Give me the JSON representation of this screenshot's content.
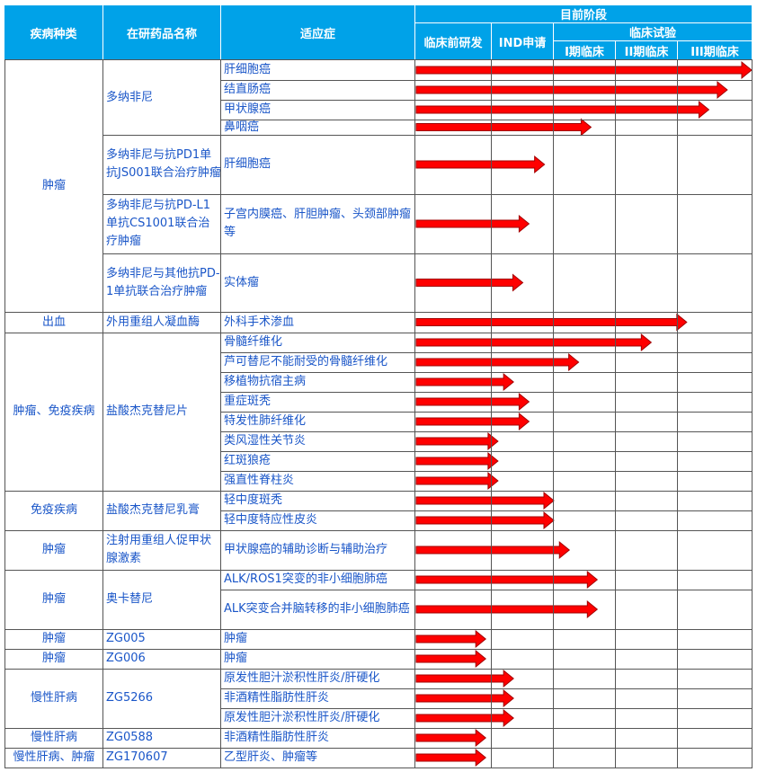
{
  "header": {
    "disease_type": "疾病种类",
    "drug_name": "在研药品名称",
    "indication": "适应症",
    "current_stage": "目前阶段",
    "preclinical": "临床前研发",
    "ind": "IND申请",
    "clinical_trial": "临床试验",
    "phase1": "I期临床",
    "phase2": "II期临床",
    "phase3": "III期临床"
  },
  "groups": [
    {
      "disease": "肿瘤",
      "drugs": [
        {
          "name": "多纳非尼",
          "indications": [
            "肝细胞癌",
            "结直肠癌",
            "甲状腺癌",
            "鼻咽癌"
          ]
        },
        {
          "name": "多纳非尼与抗PD1单抗JS001联合治疗肿瘤",
          "indications": [
            "肝细胞癌"
          ]
        },
        {
          "name": "多纳非尼与抗PD-L1单抗CS1001联合治疗肿瘤",
          "indications": [
            "子宫内膜癌、肝胆肿瘤、头颈部肿瘤等"
          ]
        },
        {
          "name": "多纳非尼与其他抗PD-1单抗联合治疗肿瘤",
          "indications": [
            "实体瘤"
          ]
        }
      ]
    },
    {
      "disease": "出血",
      "drugs": [
        {
          "name": "外用重组人凝血酶",
          "indications": [
            "外科手术渗血"
          ]
        }
      ]
    },
    {
      "disease": "肿瘤、免疫疾病",
      "drugs": [
        {
          "name": "盐酸杰克替尼片",
          "indications": [
            "骨髓纤维化",
            "芦可替尼不能耐受的骨髓纤维化",
            "移植物抗宿主病",
            "重症斑秃",
            "特发性肺纤维化",
            "类风湿性关节炎",
            "红斑狼疮",
            "强直性脊柱炎"
          ]
        }
      ]
    },
    {
      "disease": "免疫疾病",
      "drugs": [
        {
          "name": "盐酸杰克替尼乳膏",
          "indications": [
            "轻中度斑秃",
            "轻中度特应性皮炎"
          ]
        }
      ]
    },
    {
      "disease": "肿瘤",
      "drugs": [
        {
          "name": "注射用重组人促甲状腺激素",
          "indications": [
            "甲状腺癌的辅助诊断与辅助治疗"
          ]
        }
      ]
    },
    {
      "disease": "肿瘤",
      "drugs": [
        {
          "name": "奥卡替尼",
          "indications": [
            "ALK/ROS1突变的非小细胞肺癌",
            "ALK突变合并脑转移的非小细胞肺癌"
          ]
        }
      ]
    },
    {
      "disease": "肿瘤",
      "drugs": [
        {
          "name": "ZG005",
          "indications": [
            "肿瘤"
          ]
        }
      ]
    },
    {
      "disease": "肿瘤",
      "drugs": [
        {
          "name": "ZG006",
          "indications": [
            "肿瘤"
          ]
        }
      ]
    },
    {
      "disease": "慢性肝病",
      "drugs": [
        {
          "name": "ZG5266",
          "indications": [
            "原发性胆汁淤积性肝炎/肝硬化",
            "非酒精性脂肪性肝炎",
            "原发性胆汁淤积性肝炎/肝硬化"
          ]
        }
      ]
    },
    {
      "disease": "慢性肝病",
      "drugs": [
        {
          "name": "ZG0588",
          "indications": [
            "非酒精性脂肪性肝炎"
          ]
        }
      ]
    },
    {
      "disease": "慢性肝病、肿瘤",
      "drugs": [
        {
          "name": "ZG170607",
          "indications": [
            "乙型肝炎、肿瘤等"
          ]
        }
      ]
    }
  ],
  "progress": {
    "stages": [
      "临床前研发",
      "IND申请",
      "I期临床",
      "II期临床",
      "III期临床"
    ],
    "note": "progress values are in stage units: 0 = start of 临床前研发, 5 = end of III期临床",
    "values": [
      5.0,
      4.67,
      4.42,
      2.6,
      1.85,
      1.6,
      1.5,
      4.12,
      3.57,
      2.4,
      1.35,
      1.6,
      1.6,
      1.1,
      1.1,
      1.1,
      2.0,
      2.0,
      2.25,
      2.7,
      2.7,
      0.92,
      0.92,
      1.35,
      1.35,
      1.35,
      0.92,
      0.92
    ]
  },
  "colors": {
    "header_bg": "#00a2e8",
    "header_text": "#ffffff",
    "body_text": "#1a56c8",
    "arrow_fill": "#ff0000",
    "arrow_outline": "#a00000",
    "grid": "#555555"
  }
}
